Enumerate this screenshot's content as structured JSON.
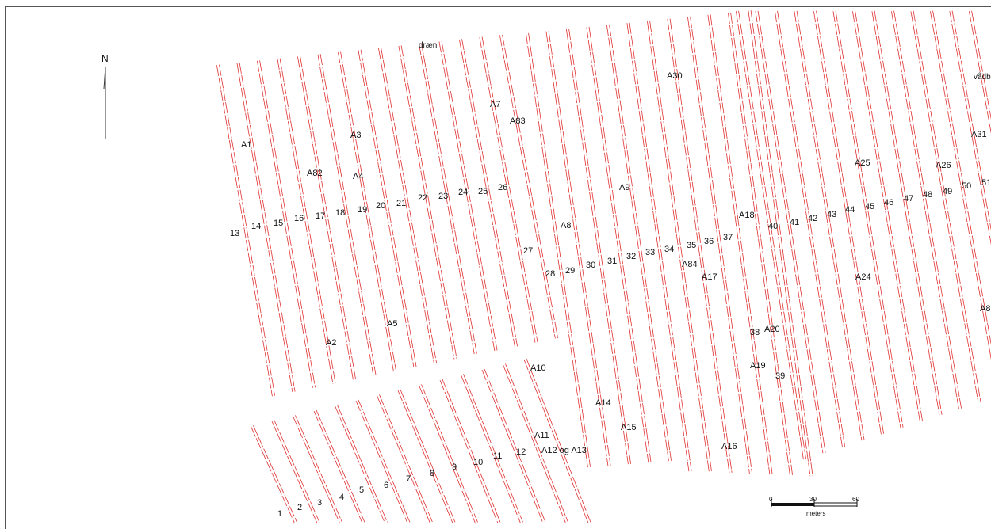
{
  "north_label": "N",
  "scale_bar": {
    "ticks": [
      "0",
      "30",
      "60"
    ],
    "unit": "meters"
  },
  "colors": {
    "trench": "#e03030",
    "label": "#111111",
    "frame": "#555555",
    "feature_blue": "#3040c0"
  },
  "trench_labels": [
    "1",
    "2",
    "3",
    "4",
    "5",
    "6",
    "7",
    "8",
    "9",
    "10",
    "11",
    "12",
    "13",
    "14",
    "15",
    "16",
    "17",
    "18",
    "19",
    "20",
    "21",
    "22",
    "23",
    "24",
    "25",
    "26",
    "27",
    "28",
    "29",
    "30",
    "31",
    "32",
    "33",
    "34",
    "35",
    "36",
    "37",
    "38",
    "39",
    "40",
    "41",
    "42",
    "43",
    "44",
    "45",
    "46",
    "47",
    "48",
    "49",
    "50",
    "51"
  ],
  "feature_labels": [
    "A1",
    "A2",
    "A3",
    "A4",
    "A5",
    "A7",
    "A8",
    "A9",
    "A10",
    "A11",
    "A12 og A13",
    "A14",
    "A15",
    "A16",
    "A17",
    "A18",
    "A19",
    "A20",
    "A24",
    "A25",
    "A26",
    "A30",
    "A31",
    "A82",
    "A83",
    "A84",
    "A8"
  ],
  "place_labels": [
    "dræn",
    "vådb"
  ]
}
